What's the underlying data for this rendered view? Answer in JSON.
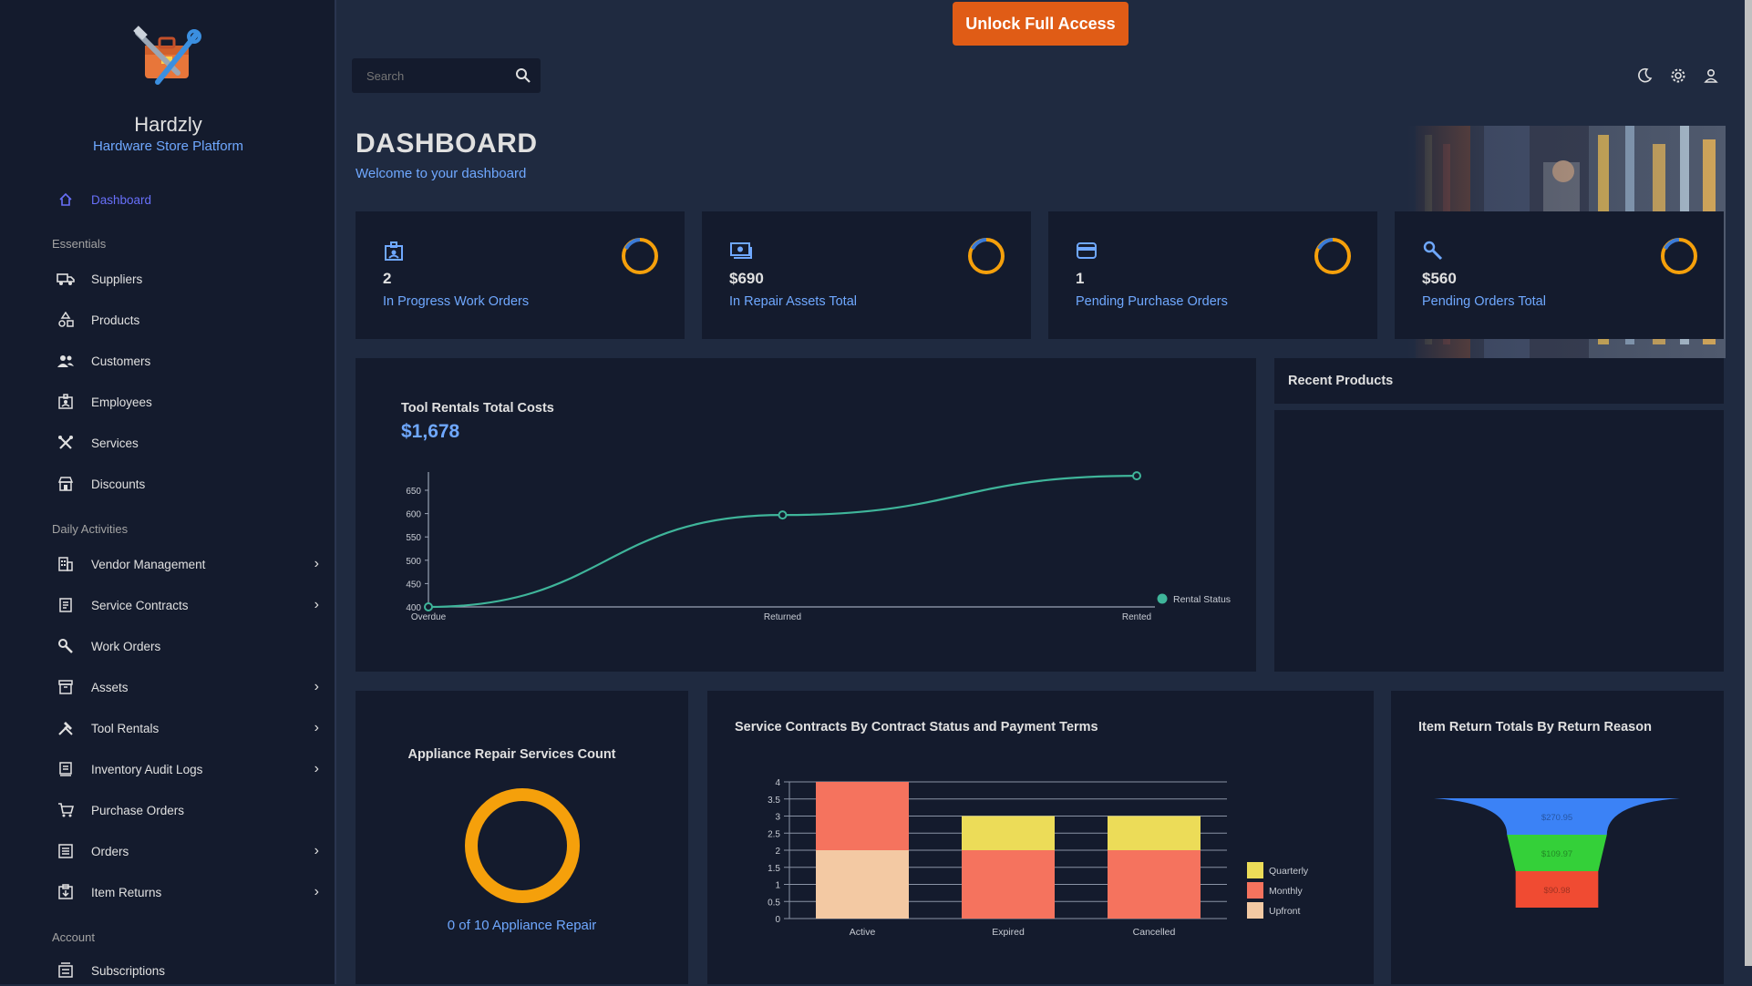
{
  "brand": {
    "name": "Hardzly",
    "subtitle": "Hardware Store Platform"
  },
  "nav": {
    "dashboard": "Dashboard",
    "section_essentials": "Essentials",
    "suppliers": "Suppliers",
    "products": "Products",
    "customers": "Customers",
    "employees": "Employees",
    "services": "Services",
    "discounts": "Discounts",
    "section_daily": "Daily Activities",
    "vendor_management": "Vendor Management",
    "service_contracts": "Service Contracts",
    "work_orders": "Work Orders",
    "assets": "Assets",
    "tool_rentals": "Tool Rentals",
    "inventory_audit_logs": "Inventory Audit Logs",
    "purchase_orders": "Purchase Orders",
    "orders": "Orders",
    "item_returns": "Item Returns",
    "section_account": "Account",
    "subscriptions": "Subscriptions"
  },
  "topbar": {
    "unlock_label": "Unlock Full Access",
    "search_placeholder": "Search"
  },
  "header": {
    "title": "DASHBOARD",
    "subtitle": "Welcome to your dashboard"
  },
  "stats": [
    {
      "value": "2",
      "label": "In Progress Work Orders",
      "icon": "work-order-icon"
    },
    {
      "value": "$690",
      "label": "In Repair Assets Total",
      "icon": "money-icon"
    },
    {
      "value": "1",
      "label": "Pending Purchase Orders",
      "icon": "card-icon"
    },
    {
      "value": "$560",
      "label": "Pending Orders Total",
      "icon": "wrench-icon"
    }
  ],
  "tool_rentals": {
    "title": "Tool Rentals Total Costs",
    "total": "$1,678"
  },
  "recent_products": {
    "title": "Recent Products"
  },
  "appliance": {
    "title": "Appliance Repair Services Count",
    "caption": "0 of 10 Appliance Repair"
  },
  "service_contracts": {
    "title": "Service Contracts By Contract Status and Payment Terms"
  },
  "item_returns": {
    "title": "Item Return Totals By Return Reason"
  },
  "colors": {
    "accent": "#6fa8ff",
    "panel": "#141b2d",
    "bg": "#1f2a40",
    "unlock": "#e05c16",
    "ring": "#f5a00b",
    "line": "#3fb59a"
  },
  "chart_data": [
    {
      "type": "line",
      "title": "",
      "categories": [
        "Overdue",
        "Returned",
        "Rented"
      ],
      "series": [
        {
          "name": "Rental Status",
          "values": [
            400,
            597,
            681
          ]
        }
      ],
      "ylim": [
        400,
        650
      ],
      "yticks": [
        400,
        450,
        500,
        550,
        600,
        650
      ],
      "legend": "right"
    },
    {
      "type": "bar",
      "stacked": true,
      "title": "",
      "categories": [
        "Active",
        "Expired",
        "Cancelled"
      ],
      "series": [
        {
          "name": "Upfront",
          "values": [
            2,
            0,
            0
          ],
          "color": "#f3c9a3"
        },
        {
          "name": "Monthly",
          "values": [
            2,
            2,
            2
          ],
          "color": "#f5735e"
        },
        {
          "name": "Quarterly",
          "values": [
            0,
            1,
            1
          ],
          "color": "#ecdc58"
        }
      ],
      "ylim": [
        0,
        4
      ],
      "yticks": [
        "0",
        "0.5",
        "1",
        "1.5",
        "2",
        "2.5",
        "3",
        "3.5",
        "4"
      ],
      "legend": "right"
    },
    {
      "type": "funnel",
      "title": "",
      "values": [
        {
          "label": "$270.95",
          "value": 270.95,
          "color": "#3b82f6"
        },
        {
          "label": "$109.97",
          "value": 109.97,
          "color": "#34d039"
        },
        {
          "label": "$90.98",
          "value": 90.98,
          "color": "#f04b32"
        }
      ]
    }
  ]
}
